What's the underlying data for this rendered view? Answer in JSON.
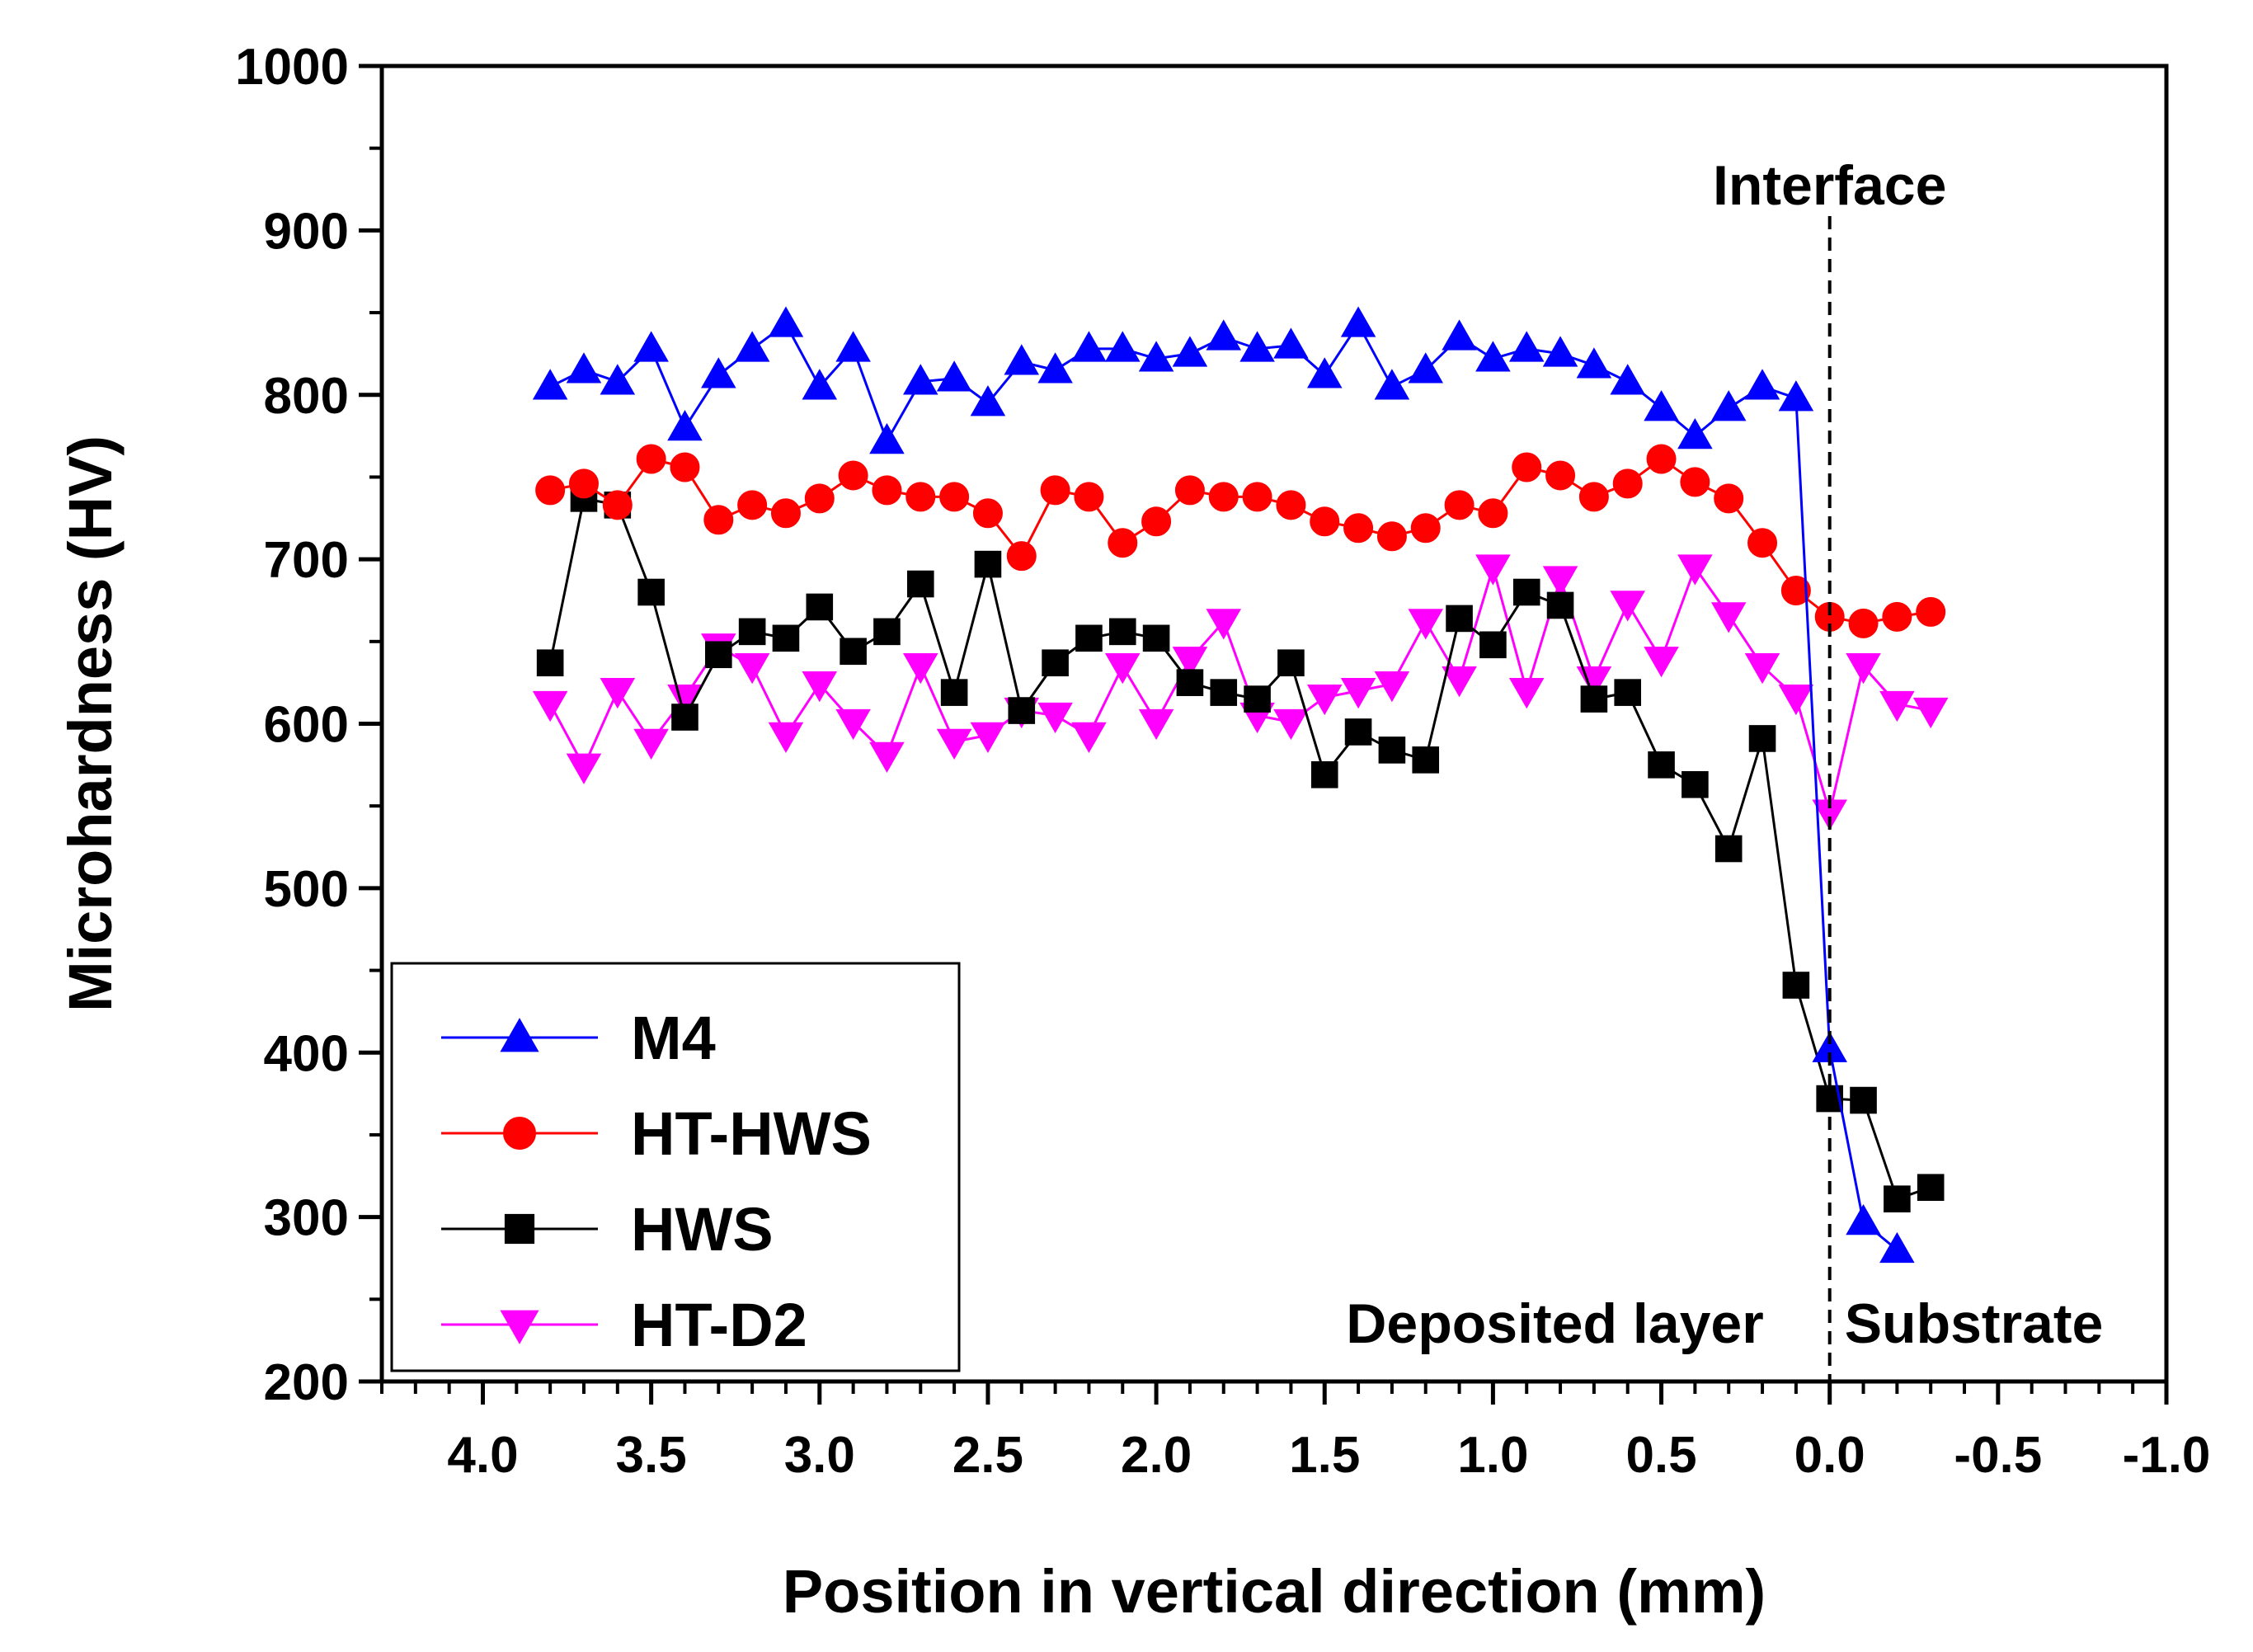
{
  "chart_data": {
    "type": "line",
    "title": "",
    "xlabel": "Position in vertical direction (mm)",
    "ylabel": "Microhardness (HV)",
    "xlim": [
      4.3,
      -1.0
    ],
    "ylim": [
      200,
      1000
    ],
    "x_ticks": [
      4.0,
      3.5,
      3.0,
      2.5,
      2.0,
      1.5,
      1.0,
      0.5,
      0.0,
      -0.5,
      -1.0
    ],
    "x_tick_labels": [
      "4.0",
      "3.5",
      "3.0",
      "2.5",
      "2.0",
      "1.5",
      "1.0",
      "0.5",
      "0.0",
      "-0.5",
      "-1.0"
    ],
    "y_ticks": [
      200,
      300,
      400,
      500,
      600,
      700,
      800,
      900,
      1000
    ],
    "y_tick_labels": [
      "200",
      "300",
      "400",
      "500",
      "600",
      "700",
      "800",
      "900",
      "1000"
    ],
    "grid": false,
    "legend_position": "bottom-left",
    "annotations": {
      "interface": "Interface",
      "deposited": "Deposited layer",
      "substrate": "Substrate"
    },
    "interface_x": 0.0,
    "series": [
      {
        "name": "M4",
        "color": "#0000ff",
        "marker": "triangle-up",
        "x": [
          3.8,
          3.7,
          3.6,
          3.5,
          3.4,
          3.3,
          3.2,
          3.1,
          3.0,
          2.9,
          2.8,
          2.7,
          2.6,
          2.5,
          2.4,
          2.3,
          2.2,
          2.1,
          2.0,
          1.9,
          1.8,
          1.7,
          1.6,
          1.5,
          1.4,
          1.3,
          1.2,
          1.1,
          1.0,
          0.9,
          0.8,
          0.7,
          0.6,
          0.5,
          0.4,
          0.3,
          0.2,
          0.1,
          0.0,
          -0.1,
          -0.2
        ],
        "y": [
          805,
          815,
          808,
          828,
          780,
          812,
          828,
          843,
          805,
          828,
          772,
          808,
          810,
          795,
          820,
          815,
          828,
          828,
          822,
          825,
          835,
          828,
          830,
          812,
          843,
          805,
          815,
          835,
          822,
          828,
          825,
          818,
          808,
          792,
          775,
          792,
          805,
          798,
          402,
          297,
          280
        ]
      },
      {
        "name": "HT-HWS",
        "color": "#ff0000",
        "marker": "circle",
        "x": [
          3.8,
          3.7,
          3.6,
          3.5,
          3.4,
          3.3,
          3.2,
          3.1,
          3.0,
          2.9,
          2.8,
          2.7,
          2.6,
          2.5,
          2.4,
          2.3,
          2.2,
          2.1,
          2.0,
          1.9,
          1.8,
          1.7,
          1.6,
          1.5,
          1.4,
          1.3,
          1.2,
          1.1,
          1.0,
          0.9,
          0.8,
          0.7,
          0.6,
          0.5,
          0.4,
          0.3,
          0.2,
          0.1,
          0.0,
          -0.1,
          -0.2,
          -0.3
        ],
        "y": [
          742,
          746,
          733,
          761,
          756,
          724,
          733,
          728,
          737,
          751,
          742,
          738,
          738,
          728,
          702,
          742,
          738,
          710,
          723,
          742,
          738,
          738,
          733,
          723,
          719,
          714,
          719,
          733,
          728,
          756,
          751,
          738,
          746,
          761,
          747,
          737,
          710,
          681,
          665,
          661,
          665,
          668
        ]
      },
      {
        "name": "HWS",
        "color": "#000000",
        "marker": "square",
        "x": [
          3.8,
          3.7,
          3.6,
          3.5,
          3.4,
          3.3,
          3.2,
          3.1,
          3.0,
          2.9,
          2.8,
          2.7,
          2.6,
          2.5,
          2.4,
          2.3,
          2.2,
          2.1,
          2.0,
          1.9,
          1.8,
          1.7,
          1.6,
          1.5,
          1.4,
          1.3,
          1.2,
          1.1,
          1.0,
          0.9,
          0.8,
          0.7,
          0.6,
          0.5,
          0.4,
          0.3,
          0.2,
          0.1,
          0.0,
          -0.1,
          -0.2,
          -0.3
        ],
        "y": [
          637,
          737,
          733,
          680,
          604,
          642,
          656,
          652,
          671,
          644,
          656,
          685,
          619,
          697,
          608,
          637,
          652,
          656,
          652,
          625,
          619,
          615,
          637,
          569,
          595,
          584,
          578,
          664,
          648,
          680,
          672,
          615,
          619,
          575,
          563,
          524,
          591,
          441,
          372,
          371,
          311,
          318
        ]
      },
      {
        "name": "HT-D2",
        "color": "#ff00ff",
        "marker": "triangle-down",
        "x": [
          3.8,
          3.7,
          3.6,
          3.5,
          3.4,
          3.3,
          3.2,
          3.1,
          3.0,
          2.9,
          2.8,
          2.7,
          2.6,
          2.5,
          2.4,
          2.3,
          2.2,
          2.1,
          2.0,
          1.9,
          1.8,
          1.7,
          1.6,
          1.5,
          1.4,
          1.3,
          1.2,
          1.1,
          1.0,
          0.9,
          0.8,
          0.7,
          0.6,
          0.5,
          0.4,
          0.3,
          0.2,
          0.1,
          0.0,
          -0.1,
          -0.2,
          -0.3
        ],
        "y": [
          612,
          574,
          620,
          589,
          616,
          647,
          635,
          593,
          624,
          601,
          581,
          635,
          589,
          593,
          608,
          605,
          593,
          635,
          601,
          639,
          662,
          605,
          601,
          616,
          620,
          624,
          662,
          627,
          695,
          620,
          688,
          627,
          673,
          639,
          695,
          666,
          635,
          616,
          546,
          635,
          612,
          608
        ]
      }
    ]
  }
}
